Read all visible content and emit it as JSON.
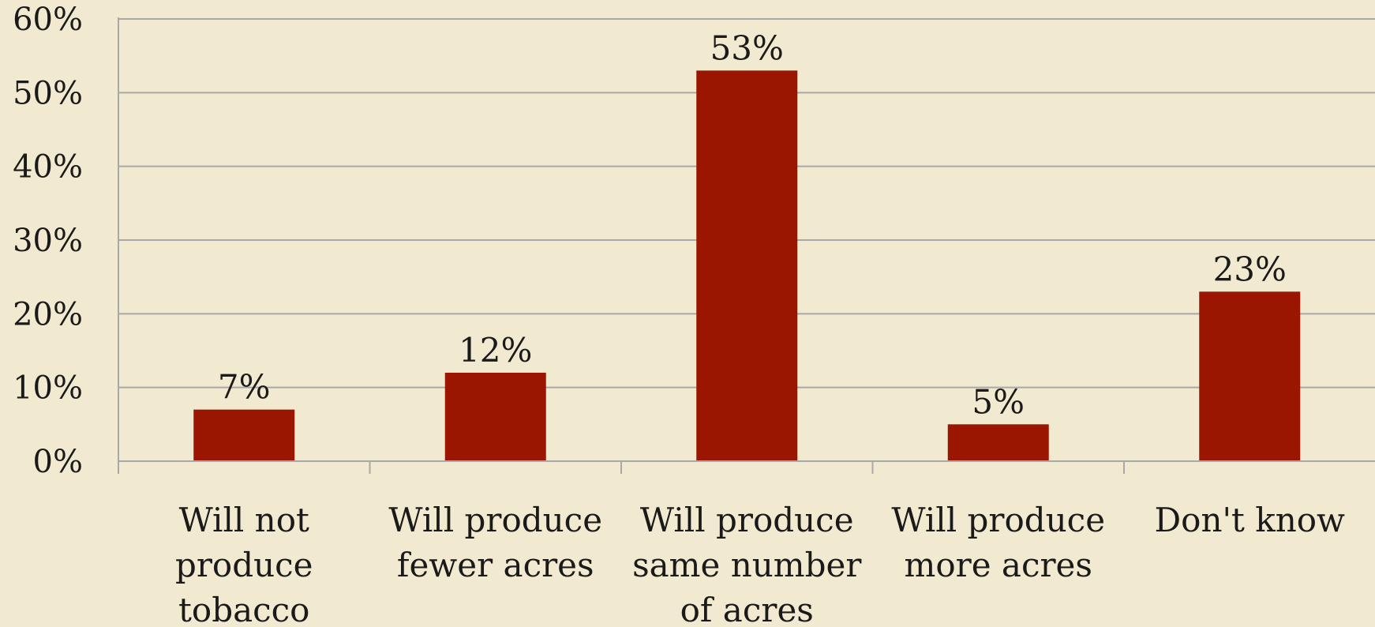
{
  "chart_data": {
    "type": "bar",
    "categories": [
      [
        "Will not",
        "produce",
        "tobacco"
      ],
      [
        "Will produce",
        "fewer acres"
      ],
      [
        "Will produce",
        "same number",
        "of acres"
      ],
      [
        "Will produce",
        "more acres"
      ],
      [
        "Don't know"
      ]
    ],
    "values": [
      7,
      12,
      53,
      5,
      23
    ],
    "data_labels": [
      "7%",
      "12%",
      "53%",
      "5%",
      "23%"
    ],
    "y_ticks": [
      "0%",
      "10%",
      "20%",
      "30%",
      "40%",
      "50%",
      "60%"
    ],
    "y_tick_values": [
      0,
      10,
      20,
      30,
      40,
      50,
      60
    ],
    "ylim": [
      0,
      60
    ],
    "grid": true,
    "title": "",
    "xlabel": "",
    "ylabel": "",
    "colors": {
      "bar": "#9a1600",
      "background": "#f2ead0",
      "grid": "#a8a8a8",
      "text": "#1a1a1a"
    }
  }
}
